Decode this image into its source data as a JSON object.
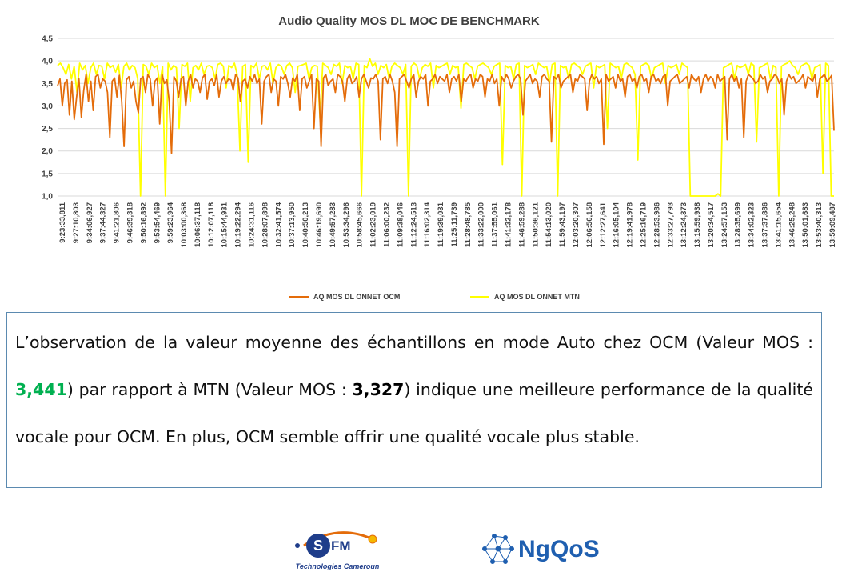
{
  "chart_data": {
    "type": "line",
    "title": "Audio Quality MOS DL MOC  DE BENCHMARK",
    "ylim": [
      1.0,
      4.5
    ],
    "yticks": [
      "1,0",
      "1,5",
      "2,0",
      "2,5",
      "3,0",
      "3,5",
      "4,0",
      "4,5"
    ],
    "grid": true,
    "legend_position": "bottom",
    "x_tick_labels": [
      "9:23:33,811",
      "9:27:10,803",
      "9:34:06,927",
      "9:37:44,327",
      "9:41:21,806",
      "9:46:39,318",
      "9:50:16,892",
      "9:53:54,469",
      "9:59:23,964",
      "10:03:00,368",
      "10:06:37,118",
      "10:12:07,118",
      "10:15:44,931",
      "10:19:22,294",
      "10:24:31,116",
      "10:28:07,898",
      "10:32:41,574",
      "10:37:13,950",
      "10:40:50,213",
      "10:46:19,690",
      "10:49:57,283",
      "10:53:34,296",
      "10:58:45,666",
      "11:02:23,019",
      "11:06:00,232",
      "11:09:38,046",
      "11:12:24,513",
      "11:16:02,314",
      "11:19:39,031",
      "11:25:11,739",
      "11:28:48,785",
      "11:33:22,000",
      "11:37:55,061",
      "11:41:32,178",
      "11:46:59,288",
      "11:50:36,121",
      "11:54:13,020",
      "11:59:43,197",
      "12:03:20,307",
      "12:06:56,158",
      "12:12:27,641",
      "12:16:05,104",
      "12:19:41,978",
      "12:25:16,719",
      "12:28:53,986",
      "12:33:27,793",
      "13:12:24,373",
      "13:15:59,938",
      "13:20:34,517",
      "13:24:57,153",
      "13:28:35,699",
      "13:34:02,323",
      "13:37:37,886",
      "13:41:15,654",
      "13:46:25,248",
      "13:50:01,683",
      "13:53:40,313",
      "13:59:09,487"
    ],
    "series": [
      {
        "name": "AQ MOS DL ONNET OCM",
        "color": "#e46c0a",
        "values": [
          3.45,
          3.6,
          3.0,
          3.5,
          3.58,
          2.8,
          3.55,
          2.7,
          3.2,
          3.6,
          2.75,
          3.35,
          3.7,
          3.1,
          3.55,
          2.9,
          3.65,
          3.7,
          3.4,
          3.6,
          3.55,
          3.3,
          2.3,
          3.55,
          3.62,
          3.2,
          3.68,
          3.1,
          2.1,
          3.58,
          3.65,
          3.4,
          3.55,
          3.1,
          2.85,
          3.6,
          3.65,
          3.3,
          3.7,
          3.6,
          3.0,
          3.55,
          3.62,
          2.6,
          3.7,
          3.5,
          3.58,
          3.1,
          1.95,
          3.65,
          3.55,
          3.2,
          3.6,
          3.65,
          3.0,
          3.55,
          3.7,
          3.4,
          3.6,
          3.55,
          3.3,
          3.62,
          3.7,
          3.15,
          3.55,
          3.6,
          3.45,
          3.7,
          3.2,
          3.55,
          3.65,
          3.5,
          3.6,
          3.58,
          3.35,
          3.7,
          3.62,
          3.1,
          3.55,
          3.6,
          3.4,
          3.65,
          3.55,
          3.7,
          3.5,
          3.6,
          2.6,
          3.55,
          3.65,
          3.7,
          3.3,
          3.6,
          3.55,
          3.0,
          3.65,
          3.6,
          3.7,
          3.5,
          3.2,
          3.62,
          3.55,
          3.7,
          2.9,
          3.6,
          3.65,
          3.4,
          3.55,
          3.7,
          2.5,
          3.6,
          3.55,
          2.1,
          3.62,
          3.7,
          3.45,
          3.55,
          3.6,
          3.3,
          3.7,
          3.65,
          3.55,
          3.1,
          3.6,
          3.7,
          3.5,
          3.55,
          3.65,
          3.2,
          3.6,
          3.7,
          3.55,
          3.4,
          3.62,
          3.6,
          3.7,
          3.55,
          2.25,
          3.6,
          3.65,
          3.5,
          3.7,
          3.55,
          3.3,
          2.1,
          3.6,
          3.65,
          3.7,
          3.55,
          3.4,
          3.6,
          3.7,
          3.2,
          3.55,
          3.65,
          3.6,
          3.7,
          3.0,
          3.55,
          3.6,
          3.7,
          3.5,
          3.65,
          3.6,
          3.55,
          3.7,
          3.3,
          3.6,
          3.65,
          3.55,
          3.7,
          3.1,
          3.6,
          3.55,
          3.65,
          3.7,
          3.4,
          3.6,
          3.55,
          3.7,
          3.65,
          3.2,
          3.6,
          3.55,
          3.7,
          3.5,
          3.6,
          3.0,
          3.65,
          3.55,
          3.7,
          3.6,
          3.4,
          3.55,
          3.65,
          3.7,
          3.6,
          2.8,
          3.55,
          3.62,
          3.7,
          3.5,
          3.6,
          3.55,
          3.2,
          3.65,
          3.7,
          3.6,
          3.55,
          2.2,
          3.65,
          3.6,
          3.7,
          3.4,
          3.55,
          3.6,
          3.65,
          3.7,
          3.3,
          3.6,
          3.55,
          3.7,
          3.65,
          3.6,
          2.9,
          3.55,
          3.7,
          3.6,
          3.65,
          3.5,
          3.6,
          2.15,
          3.7,
          3.55,
          3.6,
          3.65,
          3.4,
          3.7,
          3.55,
          3.6,
          3.2,
          3.65,
          3.7,
          3.55,
          3.6,
          3.4,
          3.65,
          3.7,
          3.55,
          3.6,
          3.3,
          3.65,
          3.7,
          3.55,
          3.6,
          3.5,
          3.65,
          3.7,
          3.0,
          3.55,
          3.6,
          3.65,
          3.7,
          3.5,
          3.55,
          3.6,
          3.65,
          3.4,
          3.7,
          3.6,
          3.55,
          3.65,
          3.3,
          3.6,
          3.7,
          3.55,
          3.65,
          3.6,
          3.4,
          3.7,
          3.55,
          3.6,
          3.65,
          2.25,
          3.6,
          3.7,
          3.55,
          3.65,
          3.4,
          3.6,
          2.3,
          3.55,
          3.7,
          3.65,
          3.6,
          3.5,
          3.55,
          3.7,
          3.6,
          3.65,
          3.3,
          3.55,
          3.6,
          3.7,
          3.65,
          3.5,
          3.6,
          2.8,
          3.55,
          3.7,
          3.6,
          3.65,
          3.5,
          3.55,
          3.6,
          3.7,
          3.4,
          3.65,
          3.6,
          3.55,
          3.7,
          3.2,
          3.6,
          3.65,
          3.7,
          3.55,
          3.6,
          3.68,
          2.45
        ]
      },
      {
        "name": "AQ MOS DL ONNET MTN",
        "color": "#ffff00",
        "values": [
          3.9,
          3.95,
          3.85,
          3.7,
          3.92,
          3.6,
          3.88,
          3.3,
          3.95,
          3.8,
          3.9,
          3.5,
          3.85,
          3.95,
          3.7,
          3.9,
          3.88,
          3.6,
          3.95,
          3.85,
          3.9,
          3.75,
          3.92,
          3.4,
          3.88,
          3.95,
          3.8,
          3.9,
          3.85,
          3.6,
          1.0,
          3.92,
          3.88,
          3.7,
          3.95,
          3.85,
          3.9,
          3.5,
          3.88,
          1.0,
          3.95,
          3.8,
          3.9,
          3.85,
          2.5,
          3.92,
          3.88,
          3.95,
          3.1,
          3.85,
          3.9,
          3.8,
          3.95,
          3.7,
          3.88,
          3.9,
          3.85,
          3.6,
          3.92,
          3.95,
          3.88,
          3.4,
          3.9,
          3.85,
          3.95,
          3.7,
          2.0,
          3.88,
          3.92,
          1.75,
          3.9,
          3.85,
          3.95,
          3.6,
          3.88,
          3.9,
          3.8,
          3.95,
          3.5,
          3.85,
          3.92,
          3.88,
          3.7,
          3.9,
          3.95,
          3.85,
          3.3,
          3.88,
          3.9,
          3.92,
          3.95,
          3.6,
          3.85,
          3.9,
          3.88,
          2.7,
          3.95,
          3.9,
          3.85,
          3.7,
          3.92,
          3.88,
          3.95,
          3.5,
          3.9,
          3.85,
          3.88,
          3.6,
          3.95,
          3.92,
          1.0,
          3.9,
          3.85,
          4.05,
          3.88,
          3.95,
          3.7,
          3.9,
          3.85,
          3.92,
          3.6,
          3.88,
          3.95,
          3.9,
          3.85,
          3.7,
          3.92,
          1.0,
          3.88,
          3.95,
          3.9,
          3.6,
          3.85,
          3.92,
          3.88,
          3.95,
          3.4,
          3.9,
          3.85,
          3.88,
          3.92,
          3.95,
          3.7,
          3.9,
          3.85,
          3.88,
          2.95,
          3.92,
          3.95,
          3.9,
          3.85,
          3.6,
          3.88,
          3.92,
          3.95,
          3.9,
          3.85,
          3.7,
          3.88,
          3.92,
          3.95,
          1.7,
          3.9,
          3.85,
          3.88,
          3.6,
          3.92,
          3.95,
          1.0,
          3.9,
          3.85,
          3.88,
          3.92,
          3.7,
          3.95,
          3.9,
          3.85,
          3.88,
          3.5,
          3.92,
          3.95,
          1.0,
          3.9,
          3.85,
          3.88,
          3.6,
          3.92,
          3.95,
          3.9,
          3.85,
          3.7,
          3.88,
          3.92,
          3.95,
          3.4,
          3.9,
          3.85,
          3.88,
          3.92,
          2.5,
          3.95,
          3.9,
          3.85,
          3.88,
          3.6,
          3.92,
          3.95,
          3.9,
          3.85,
          3.7,
          1.8,
          3.88,
          3.92,
          3.95,
          3.9,
          3.6,
          3.85,
          3.88,
          3.92,
          3.95,
          3.5,
          3.9,
          3.85,
          3.88,
          3.92,
          3.7,
          3.95,
          3.9,
          3.85,
          1.0,
          1.0,
          1.0,
          1.0,
          1.0,
          1.0,
          1.0,
          1.0,
          1.0,
          1.0,
          1.05,
          1.0,
          3.85,
          3.88,
          3.92,
          3.95,
          3.6,
          3.9,
          3.85,
          3.88,
          3.92,
          3.7,
          3.95,
          3.9,
          2.2,
          3.85,
          3.88,
          3.92,
          3.95,
          3.6,
          3.9,
          3.85,
          1.0,
          3.88,
          3.92,
          3.95,
          4.0,
          3.9,
          3.85,
          3.7,
          3.88,
          3.92,
          3.95,
          3.9,
          3.6,
          3.85,
          3.88,
          3.92,
          1.5,
          3.95,
          3.9,
          1.0,
          1.0
        ]
      }
    ]
  },
  "paragraph": {
    "part1": "L’observation de la valeur moyenne des échantillons en mode Auto chez OCM (Valeur MOS : ",
    "ocm_value": "3,441",
    "part2": ") par rapport à MTN (Valeur MOS : ",
    "mtn_value": "3,327",
    "part3": ") indique une meilleure performance de la qualité vocale pour OCM. En plus, OCM semble offrir une qualité vocale plus stable."
  },
  "logos": {
    "sfm_text": "SFM",
    "sfm_subtitle": "Technologies Cameroun",
    "ngqos_text": "NgQoS"
  }
}
